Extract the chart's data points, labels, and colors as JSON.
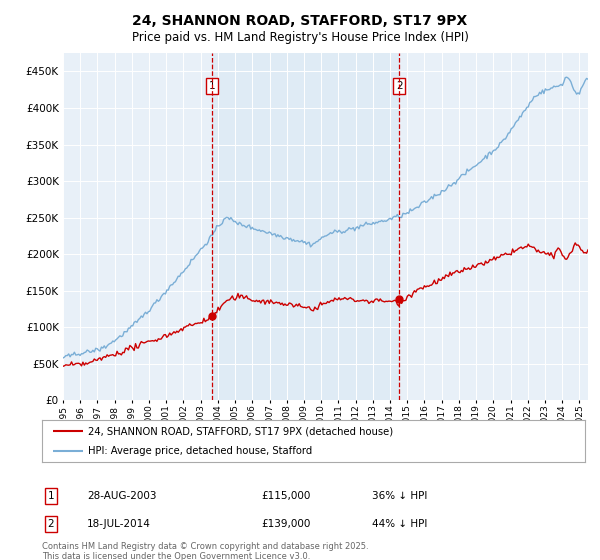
{
  "title": "24, SHANNON ROAD, STAFFORD, ST17 9PX",
  "subtitle": "Price paid vs. HM Land Registry's House Price Index (HPI)",
  "legend_property": "24, SHANNON ROAD, STAFFORD, ST17 9PX (detached house)",
  "legend_hpi": "HPI: Average price, detached house, Stafford",
  "sale1_label": "1",
  "sale1_date": "28-AUG-2003",
  "sale1_price": "£115,000",
  "sale1_hpi": "36% ↓ HPI",
  "sale1_year": 2003.65,
  "sale1_value": 115000,
  "sale2_label": "2",
  "sale2_date": "18-JUL-2014",
  "sale2_price": "£139,000",
  "sale2_hpi": "44% ↓ HPI",
  "sale2_year": 2014.54,
  "sale2_value": 139000,
  "property_color": "#cc0000",
  "hpi_color": "#7aaed6",
  "shade_color": "#dce9f5",
  "vline_color": "#cc0000",
  "background_color": "#e8f0f8",
  "plot_bg": "#e8f0f8",
  "grid_color": "#ffffff",
  "footer": "Contains HM Land Registry data © Crown copyright and database right 2025.\nThis data is licensed under the Open Government Licence v3.0.",
  "ylim": [
    0,
    475000
  ],
  "xlim_start": 1995.0,
  "xlim_end": 2025.5,
  "title_fontsize": 10,
  "subtitle_fontsize": 8.5
}
